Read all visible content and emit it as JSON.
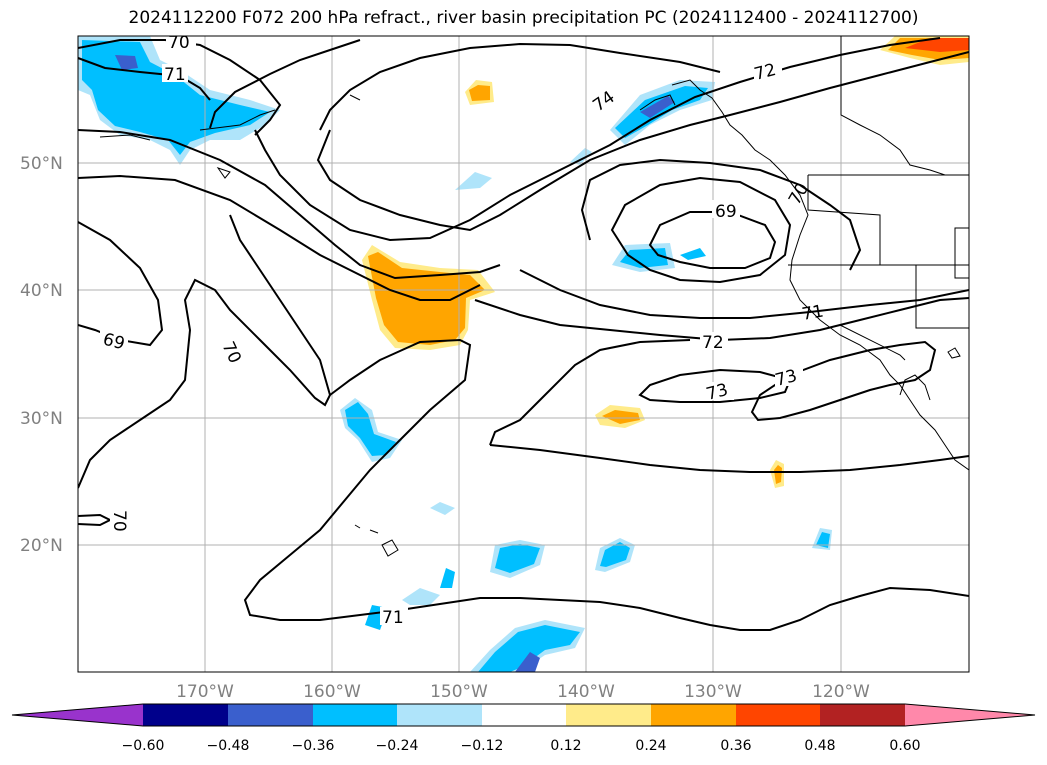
{
  "title": "2024112200 F072 200 hPa refract., river basin precipitation PC (2024112400 - 2024112700)",
  "lat_labels": [
    "50°N",
    "40°N",
    "30°N",
    "20°N"
  ],
  "lon_labels": [
    "170°W",
    "160°W",
    "150°W",
    "140°W",
    "130°W",
    "120°W"
  ],
  "contour_labels": [
    "70",
    "71",
    "74",
    "72",
    "69",
    "70",
    "71",
    "72",
    "73",
    "73",
    "69",
    "70",
    "70",
    "71"
  ],
  "colorbar": {
    "ticks": [
      "−0.60",
      "−0.48",
      "−0.36",
      "−0.24",
      "−0.12",
      "0.12",
      "0.24",
      "0.36",
      "0.48",
      "0.60"
    ],
    "colors": [
      "#9933cc",
      "#00008b",
      "#3a5fcd",
      "#00bfff",
      "#afe4fa",
      "#ffffff",
      "#ffeb8a",
      "#ffa500",
      "#ff4500",
      "#b22222",
      "#ff88aa"
    ]
  },
  "colors": {
    "shade_light_blue": "#afe4fa",
    "shade_blue": "#00bfff",
    "shade_dark_blue": "#3a5fcd",
    "shade_yellow": "#ffeb8a",
    "shade_orange": "#ffa500",
    "shade_red": "#ff4500",
    "grid": "#b0b0b0"
  }
}
